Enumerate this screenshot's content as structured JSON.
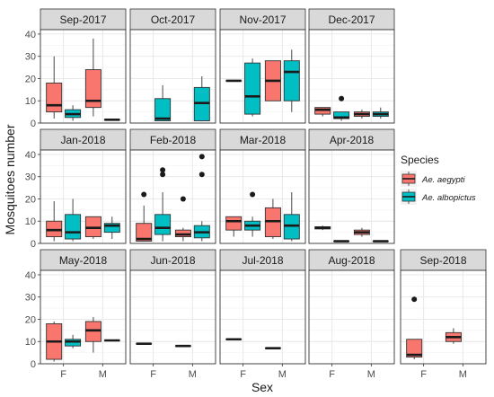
{
  "chart_data": {
    "type": "boxplot",
    "xlabel": "Sex",
    "ylabel": "Mosquitoes number",
    "categories": [
      "F",
      "M"
    ],
    "ylim": [
      0,
      42
    ],
    "yticks": [
      0,
      10,
      20,
      30,
      40
    ],
    "grid": true,
    "legend": {
      "title": "Species",
      "position": "right",
      "items": [
        {
          "label": "Ae. aegypti",
          "color": "#F8766D"
        },
        {
          "label": "Ae. albopictus",
          "color": "#00BFC4"
        }
      ]
    },
    "panels": [
      {
        "title": "Sep-2017",
        "row": 0,
        "col": 0,
        "boxes": [
          {
            "sex": "F",
            "species": "aegypti",
            "min": 2,
            "q1": 5,
            "median": 8,
            "q3": 18,
            "max": 30,
            "outliers": []
          },
          {
            "sex": "F",
            "species": "albopictus",
            "min": 1,
            "q1": 2.5,
            "median": 4,
            "q3": 6,
            "max": 8,
            "outliers": []
          },
          {
            "sex": "M",
            "species": "aegypti",
            "min": 3,
            "q1": 7,
            "median": 10,
            "q3": 24,
            "max": 38,
            "outliers": []
          },
          {
            "sex": "M",
            "species": "albopictus",
            "min": 1.5,
            "q1": 1.5,
            "median": 1.5,
            "q3": 1.5,
            "max": 1.5,
            "outliers": []
          }
        ]
      },
      {
        "title": "Oct-2017",
        "row": 0,
        "col": 1,
        "boxes": [
          {
            "sex": "F",
            "species": "albopictus",
            "min": 1,
            "q1": 1,
            "median": 2,
            "q3": 11,
            "max": 17,
            "outliers": []
          },
          {
            "sex": "M",
            "species": "albopictus",
            "min": 1,
            "q1": 1,
            "median": 9,
            "q3": 16,
            "max": 21,
            "outliers": []
          }
        ]
      },
      {
        "title": "Nov-2017",
        "row": 0,
        "col": 2,
        "boxes": [
          {
            "sex": "F",
            "species": "aegypti",
            "min": 19,
            "q1": 19,
            "median": 19,
            "q3": 19,
            "max": 19,
            "outliers": []
          },
          {
            "sex": "F",
            "species": "albopictus",
            "min": 3,
            "q1": 4,
            "median": 12,
            "q3": 27,
            "max": 29,
            "outliers": []
          },
          {
            "sex": "M",
            "species": "aegypti",
            "min": 10,
            "q1": 10,
            "median": 19,
            "q3": 28,
            "max": 28,
            "outliers": []
          },
          {
            "sex": "M",
            "species": "albopictus",
            "min": 5,
            "q1": 10,
            "median": 23,
            "q3": 28,
            "max": 33,
            "outliers": []
          }
        ]
      },
      {
        "title": "Dec-2017",
        "row": 0,
        "col": 3,
        "boxes": [
          {
            "sex": "F",
            "species": "aegypti",
            "min": 3,
            "q1": 4,
            "median": 6,
            "q3": 7,
            "max": 7,
            "outliers": []
          },
          {
            "sex": "F",
            "species": "albopictus",
            "min": 1,
            "q1": 2,
            "median": 2.5,
            "q3": 5,
            "max": 5,
            "outliers": [
              11
            ]
          },
          {
            "sex": "M",
            "species": "aegypti",
            "min": 2,
            "q1": 3,
            "median": 4,
            "q3": 5,
            "max": 6,
            "outliers": []
          },
          {
            "sex": "M",
            "species": "albopictus",
            "min": 2,
            "q1": 3,
            "median": 4,
            "q3": 5,
            "max": 7,
            "outliers": []
          }
        ]
      },
      {
        "title": "Jan-2018",
        "row": 1,
        "col": 0,
        "boxes": [
          {
            "sex": "F",
            "species": "aegypti",
            "min": 1,
            "q1": 3,
            "median": 6,
            "q3": 10,
            "max": 19,
            "outliers": []
          },
          {
            "sex": "F",
            "species": "albopictus",
            "min": 1,
            "q1": 2,
            "median": 5,
            "q3": 13,
            "max": 20,
            "outliers": []
          },
          {
            "sex": "M",
            "species": "aegypti",
            "min": 2,
            "q1": 3,
            "median": 7,
            "q3": 12,
            "max": 12,
            "outliers": []
          },
          {
            "sex": "M",
            "species": "albopictus",
            "min": 2,
            "q1": 5,
            "median": 8,
            "q3": 9,
            "max": 12,
            "outliers": []
          }
        ]
      },
      {
        "title": "Feb-2018",
        "row": 1,
        "col": 1,
        "boxes": [
          {
            "sex": "F",
            "species": "aegypti",
            "min": 1,
            "q1": 1,
            "median": 2,
            "q3": 9,
            "max": 17,
            "outliers": [
              22
            ]
          },
          {
            "sex": "F",
            "species": "albopictus",
            "min": 1,
            "q1": 4,
            "median": 7,
            "q3": 13,
            "max": 23,
            "outliers": [
              31,
              33
            ]
          },
          {
            "sex": "M",
            "species": "aegypti",
            "min": 1,
            "q1": 3,
            "median": 4,
            "q3": 6,
            "max": 7,
            "outliers": [
              20
            ]
          },
          {
            "sex": "M",
            "species": "albopictus",
            "min": 1,
            "q1": 2.5,
            "median": 5,
            "q3": 8,
            "max": 10,
            "outliers": [
              31,
              39
            ]
          }
        ]
      },
      {
        "title": "Mar-2018",
        "row": 1,
        "col": 2,
        "boxes": [
          {
            "sex": "F",
            "species": "aegypti",
            "min": 3,
            "q1": 6,
            "median": 10,
            "q3": 12,
            "max": 12,
            "outliers": []
          },
          {
            "sex": "F",
            "species": "albopictus",
            "min": 3,
            "q1": 6,
            "median": 8,
            "q3": 10,
            "max": 12,
            "outliers": [
              22
            ]
          },
          {
            "sex": "M",
            "species": "aegypti",
            "min": 2,
            "q1": 3,
            "median": 10,
            "q3": 16,
            "max": 20,
            "outliers": []
          },
          {
            "sex": "M",
            "species": "albopictus",
            "min": 1,
            "q1": 2,
            "median": 8,
            "q3": 13,
            "max": 23,
            "outliers": []
          }
        ]
      },
      {
        "title": "Apr-2018",
        "row": 1,
        "col": 3,
        "boxes": [
          {
            "sex": "F",
            "species": "aegypti",
            "min": 6,
            "q1": 6.5,
            "median": 7,
            "q3": 7.5,
            "max": 8,
            "outliers": []
          },
          {
            "sex": "F",
            "species": "albopictus",
            "min": 1,
            "q1": 1,
            "median": 1,
            "q3": 1,
            "max": 1,
            "outliers": []
          },
          {
            "sex": "M",
            "species": "aegypti",
            "min": 3,
            "q1": 4,
            "median": 5,
            "q3": 6,
            "max": 7,
            "outliers": []
          },
          {
            "sex": "M",
            "species": "albopictus",
            "min": 1,
            "q1": 1,
            "median": 1,
            "q3": 1,
            "max": 1,
            "outliers": []
          }
        ]
      },
      {
        "title": "May-2018",
        "row": 2,
        "col": 0,
        "boxes": [
          {
            "sex": "F",
            "species": "aegypti",
            "min": 1,
            "q1": 2,
            "median": 10,
            "q3": 18,
            "max": 19,
            "outliers": []
          },
          {
            "sex": "F",
            "species": "albopictus",
            "min": 7,
            "q1": 8,
            "median": 10,
            "q3": 11,
            "max": 13,
            "outliers": []
          },
          {
            "sex": "M",
            "species": "aegypti",
            "min": 5,
            "q1": 10,
            "median": 15,
            "q3": 19,
            "max": 21,
            "outliers": []
          },
          {
            "sex": "M",
            "species": "albopictus",
            "min": 10.5,
            "q1": 10.5,
            "median": 10.5,
            "q3": 10.5,
            "max": 10.5,
            "outliers": []
          }
        ]
      },
      {
        "title": "Jun-2018",
        "row": 2,
        "col": 1,
        "boxes": [
          {
            "sex": "F",
            "species": "aegypti",
            "min": 9,
            "q1": 9,
            "median": 9,
            "q3": 9,
            "max": 9,
            "outliers": []
          },
          {
            "sex": "M",
            "species": "aegypti",
            "min": 8,
            "q1": 8,
            "median": 8,
            "q3": 8,
            "max": 8,
            "outliers": []
          }
        ]
      },
      {
        "title": "Jul-2018",
        "row": 2,
        "col": 2,
        "boxes": [
          {
            "sex": "F",
            "species": "aegypti",
            "min": 11,
            "q1": 11,
            "median": 11,
            "q3": 11,
            "max": 11,
            "outliers": []
          },
          {
            "sex": "M",
            "species": "aegypti",
            "min": 7,
            "q1": 7,
            "median": 7,
            "q3": 7,
            "max": 7,
            "outliers": []
          }
        ]
      },
      {
        "title": "Aug-2018",
        "row": 2,
        "col": 3,
        "boxes": []
      },
      {
        "title": "Sep-2018",
        "row": 2,
        "col": 4,
        "boxes": [
          {
            "sex": "F",
            "species": "aegypti",
            "min": 2,
            "q1": 3,
            "median": 4,
            "q3": 11,
            "max": 11,
            "outliers": [
              29
            ]
          },
          {
            "sex": "M",
            "species": "aegypti",
            "min": 9,
            "q1": 10,
            "median": 12,
            "q3": 14,
            "max": 16,
            "outliers": []
          }
        ]
      }
    ]
  }
}
